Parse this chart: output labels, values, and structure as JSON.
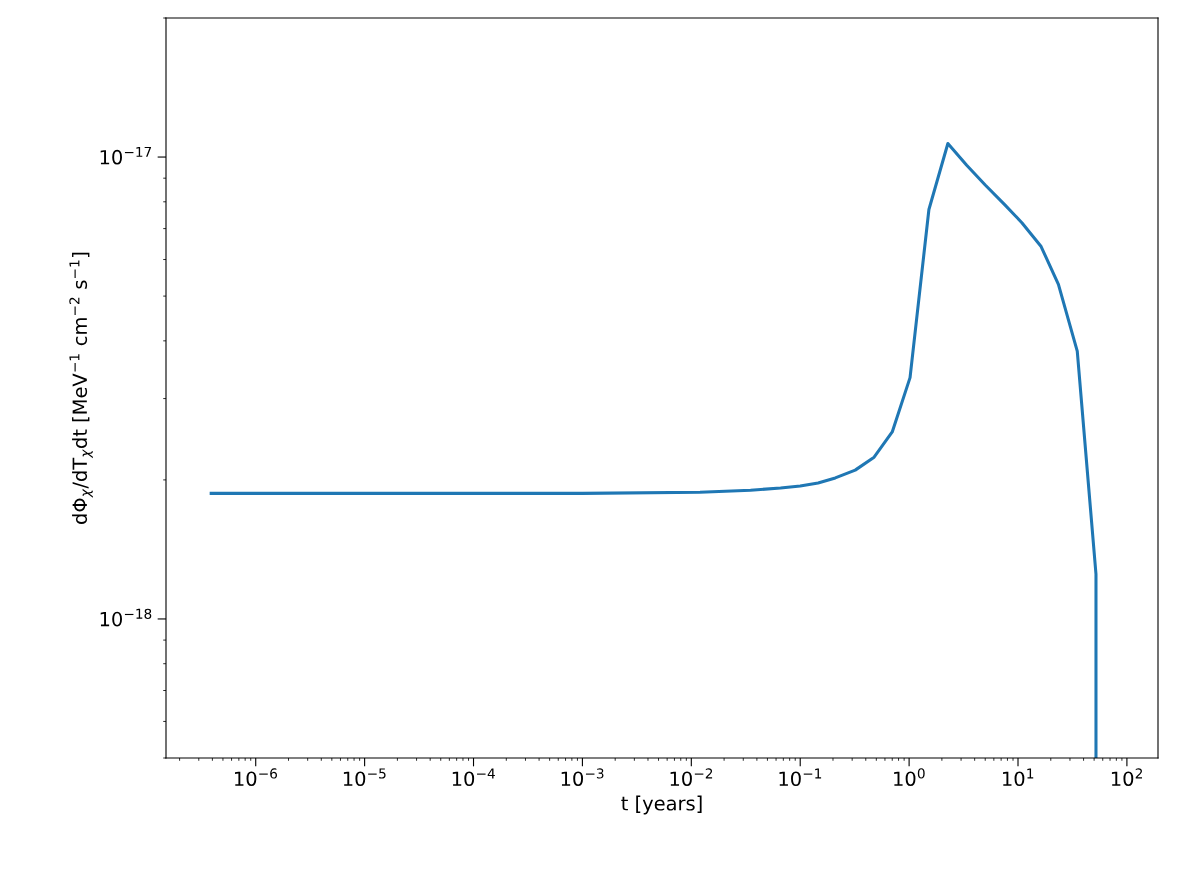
{
  "chart_data": {
    "type": "line",
    "xlabel": "t [years]",
    "ylabel": "dΦ$_{χ}$/dT$_{χ}$dt [MeV$^{−1}$ cm$^{−2}$ s$^{−1}$]",
    "log": "xy",
    "grid": false,
    "legend": false,
    "marker": "none",
    "line_style": "solid",
    "xlim": [
      1.5e-07,
      193
    ],
    "ylim": [
      5e-19,
      2e-17
    ],
    "xticks": [
      {
        "value": 1e-06,
        "label": "10$^{−6}$"
      },
      {
        "value": 1e-05,
        "label": "10$^{−5}$"
      },
      {
        "value": 0.0001,
        "label": "10$^{−4}$"
      },
      {
        "value": 0.001,
        "label": "10$^{−3}$"
      },
      {
        "value": 0.01,
        "label": "10$^{−2}$"
      },
      {
        "value": 0.1,
        "label": "10$^{−1}$"
      },
      {
        "value": 1,
        "label": "10$^{0}$"
      },
      {
        "value": 10,
        "label": "10$^{1}$"
      },
      {
        "value": 100,
        "label": "10$^{2}$"
      }
    ],
    "yticks": [
      {
        "value": 1e-18,
        "label": "10$^{−18}$"
      },
      {
        "value": 1e-17,
        "label": "10$^{−17}$"
      }
    ],
    "x": [
      3.9e-07,
      1e-06,
      1e-05,
      0.0001,
      0.001,
      0.012,
      0.035,
      0.066,
      0.1,
      0.146,
      0.21,
      0.32,
      0.477,
      0.7,
      1.02,
      1.52,
      2.27,
      3.38,
      5.0,
      7.5,
      10.9,
      16.3,
      23.5,
      35,
      52,
      52
    ],
    "series": [
      {
        "color": "#1f77b4",
        "values": [
          1.87e-18,
          1.87e-18,
          1.87e-18,
          1.87e-18,
          1.87e-18,
          1.88e-18,
          1.9e-18,
          1.92e-18,
          1.94e-18,
          1.97e-18,
          2.02e-18,
          2.1e-18,
          2.24e-18,
          2.54e-18,
          3.33e-18,
          7.7e-18,
          1.07e-17,
          9.6e-18,
          8.7e-18,
          7.9e-18,
          7.2e-18,
          6.4e-18,
          5.3e-18,
          3.8e-18,
          1.25e-18,
          5e-19
        ]
      }
    ]
  }
}
